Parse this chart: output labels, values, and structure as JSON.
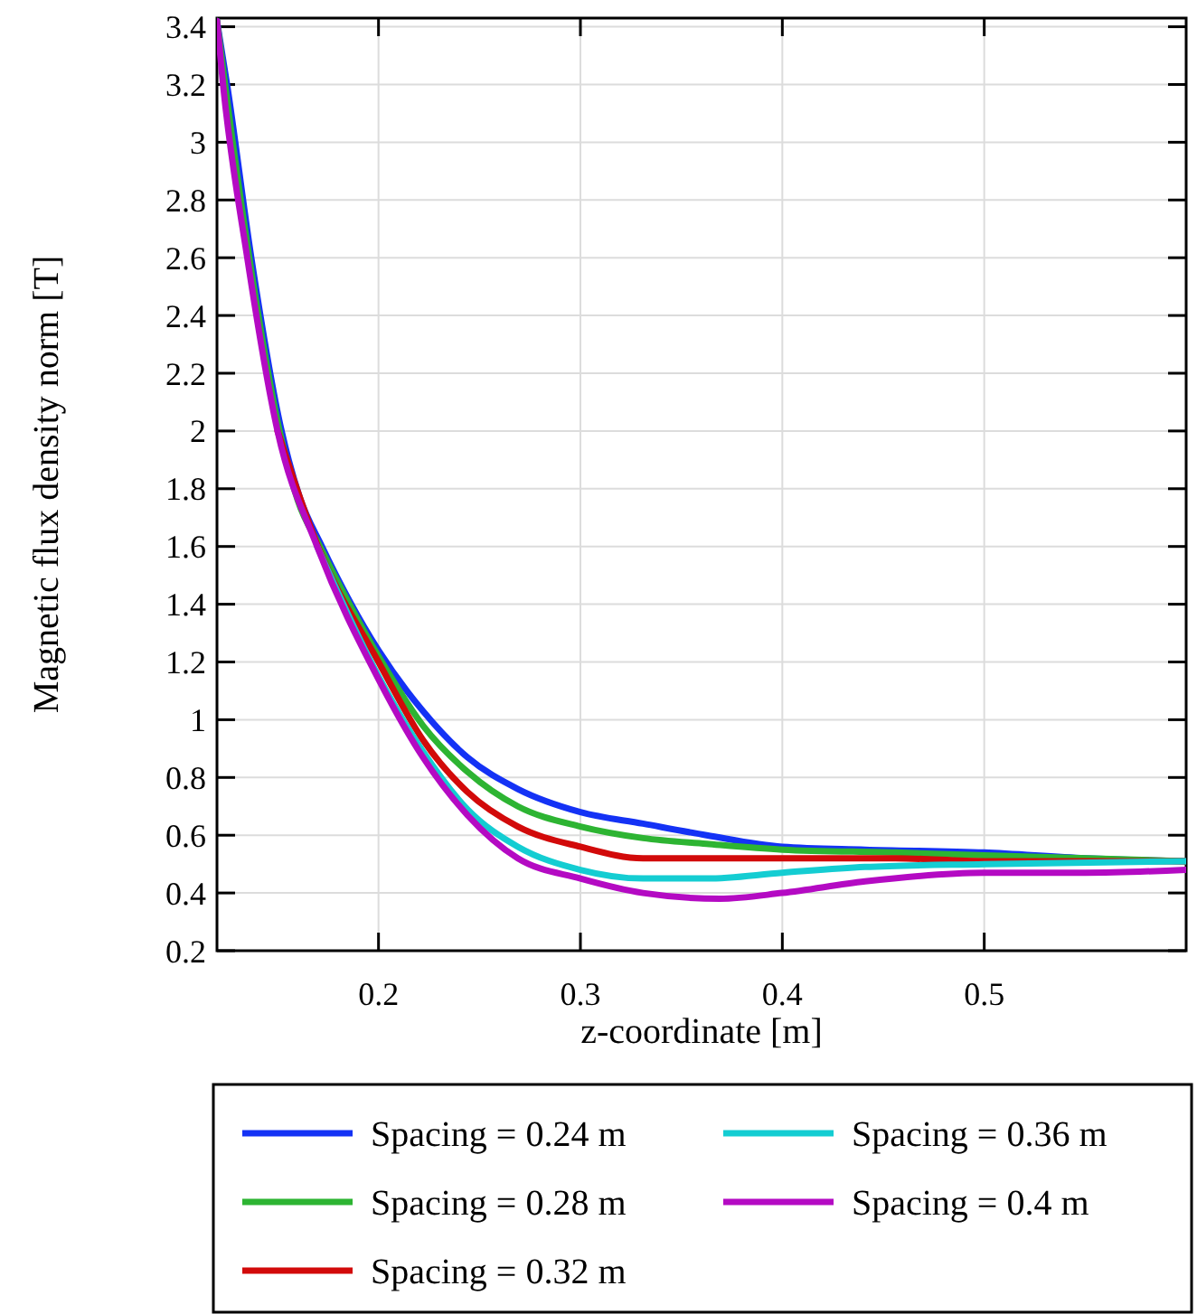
{
  "chart_data": {
    "type": "line",
    "xlabel": "z-coordinate [m]",
    "ylabel": "Magnetic flux density norm [T]",
    "xlim": [
      0.12,
      0.6
    ],
    "ylim": [
      0.2,
      3.43
    ],
    "xticks": [
      0.2,
      0.3,
      0.4,
      0.5
    ],
    "yticks": [
      0.2,
      0.4,
      0.6,
      0.8,
      1,
      1.2,
      1.4,
      1.6,
      1.8,
      2,
      2.2,
      2.4,
      2.6,
      2.8,
      3,
      3.2,
      3.4
    ],
    "grid": true,
    "legend": "bottom",
    "line_style": "solid",
    "marker": "none",
    "series": [
      {
        "name": "Spacing = 0.24 m",
        "color": "#1432f5",
        "x": [
          0.12,
          0.125,
          0.137,
          0.152,
          0.161,
          0.172,
          0.2,
          0.222,
          0.244,
          0.269,
          0.3,
          0.331,
          0.3625,
          0.4,
          0.441,
          0.5,
          0.55,
          0.6
        ],
        "values": [
          3.42,
          3.2,
          2.6,
          2.0,
          1.77,
          1.6,
          1.24,
          1.03,
          0.87,
          0.76,
          0.68,
          0.64,
          0.6,
          0.56,
          0.55,
          0.54,
          0.52,
          0.51
        ]
      },
      {
        "name": "Spacing = 0.28 m",
        "color": "#2db432",
        "x": [
          0.12,
          0.124,
          0.136,
          0.151,
          0.16,
          0.171,
          0.2,
          0.222,
          0.244,
          0.269,
          0.3,
          0.331,
          0.3625,
          0.4,
          0.456,
          0.5,
          0.6
        ],
        "values": [
          3.42,
          3.2,
          2.6,
          2.0,
          1.76,
          1.6,
          1.22,
          0.98,
          0.82,
          0.7,
          0.63,
          0.59,
          0.57,
          0.55,
          0.54,
          0.53,
          0.51
        ]
      },
      {
        "name": "Spacing = 0.32 m",
        "color": "#d20a0a",
        "x": [
          0.15,
          0.17,
          0.2,
          0.222,
          0.244,
          0.269,
          0.3,
          0.331,
          0.3625,
          0.4,
          0.456,
          0.5,
          0.6
        ],
        "values": [
          2.0,
          1.6,
          1.2,
          0.93,
          0.75,
          0.63,
          0.56,
          0.52,
          0.52,
          0.52,
          0.52,
          0.51,
          0.51
        ]
      },
      {
        "name": "Spacing = 0.36 m",
        "color": "#14cdd2",
        "x": [
          0.1696,
          0.2,
          0.222,
          0.244,
          0.269,
          0.3,
          0.331,
          0.3625,
          0.4,
          0.441,
          0.5,
          0.6
        ],
        "values": [
          1.6,
          1.15,
          0.89,
          0.69,
          0.56,
          0.48,
          0.45,
          0.45,
          0.47,
          0.49,
          0.5,
          0.51
        ]
      },
      {
        "name": "Spacing = 0.4 m",
        "color": "#b40ac3",
        "x": [
          0.12,
          0.123,
          0.135,
          0.15,
          0.1696,
          0.2,
          0.222,
          0.244,
          0.269,
          0.3,
          0.331,
          0.369,
          0.4,
          0.441,
          0.5,
          0.55,
          0.6
        ],
        "values": [
          3.42,
          3.2,
          2.6,
          2.0,
          1.6,
          1.14,
          0.87,
          0.67,
          0.52,
          0.45,
          0.4,
          0.38,
          0.4,
          0.44,
          0.47,
          0.47,
          0.48
        ]
      }
    ]
  }
}
